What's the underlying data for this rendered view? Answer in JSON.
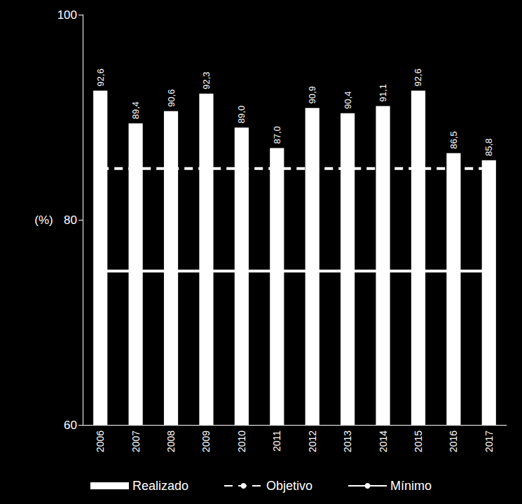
{
  "chart_data": {
    "type": "bar",
    "ylabel": "(%)",
    "categories": [
      "2006",
      "2007",
      "2008",
      "2009",
      "2010",
      "2011",
      "2012",
      "2013",
      "2014",
      "2015",
      "2016",
      "2017"
    ],
    "series": [
      {
        "name": "Realizado",
        "type": "bar",
        "color": "#ffffff",
        "values": [
          92.6,
          89.4,
          90.6,
          92.3,
          89.0,
          87.0,
          90.9,
          90.4,
          91.1,
          92.6,
          86.5,
          85.8
        ],
        "value_labels": [
          "92,6",
          "89,4",
          "90,6",
          "92,3",
          "89,0",
          "87,0",
          "90,9",
          "90,4",
          "91,1",
          "92,6",
          "86,5",
          "85,8"
        ]
      },
      {
        "name": "Objetivo",
        "type": "line",
        "color": "#ffffff",
        "line_style": "dashed",
        "values": [
          85,
          85,
          85,
          85,
          85,
          85,
          85,
          85,
          85,
          85,
          85,
          85
        ]
      },
      {
        "name": "Mínimo",
        "type": "line",
        "color": "#ffffff",
        "line_style": "solid",
        "values": [
          75,
          75,
          75,
          75,
          75,
          75,
          75,
          75,
          75,
          75,
          75,
          75
        ]
      }
    ],
    "ylim": [
      60,
      100
    ],
    "yticks": [
      60,
      80,
      100
    ],
    "data_labels": true,
    "grid": false,
    "legend": "bottom"
  }
}
